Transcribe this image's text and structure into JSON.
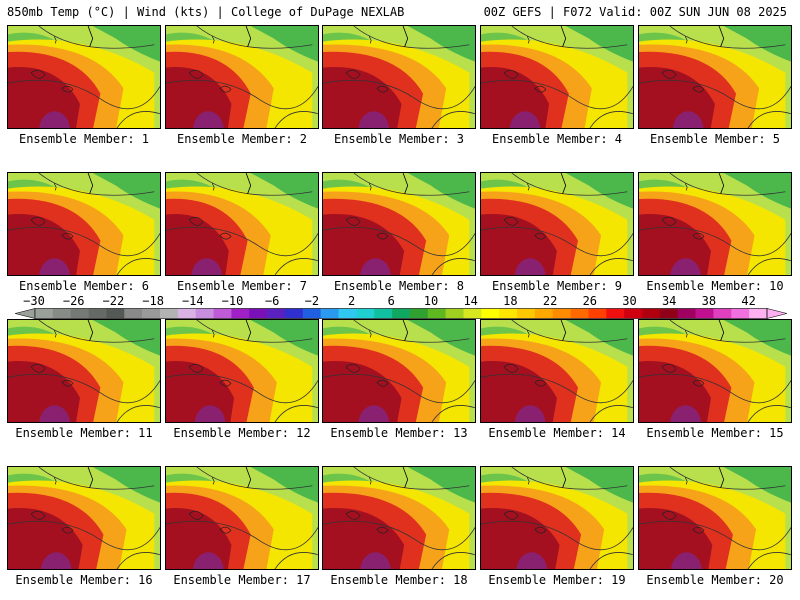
{
  "header": {
    "left": "850mb Temp (°C) | Wind (kts) | College of DuPage NEXLAB",
    "right": "00Z GEFS | F072 Valid: 00Z SUN JUN 08 2025"
  },
  "panels": [
    {
      "label": "Ensemble Member: 1"
    },
    {
      "label": "Ensemble Member: 2"
    },
    {
      "label": "Ensemble Member: 3"
    },
    {
      "label": "Ensemble Member: 4"
    },
    {
      "label": "Ensemble Member: 5"
    },
    {
      "label": "Ensemble Member: 6"
    },
    {
      "label": "Ensemble Member: 7"
    },
    {
      "label": "Ensemble Member: 8"
    },
    {
      "label": "Ensemble Member: 9"
    },
    {
      "label": "Ensemble Member: 10"
    },
    {
      "label": "Ensemble Member: 11"
    },
    {
      "label": "Ensemble Member: 12"
    },
    {
      "label": "Ensemble Member: 13"
    },
    {
      "label": "Ensemble Member: 14"
    },
    {
      "label": "Ensemble Member: 15"
    },
    {
      "label": "Ensemble Member: 16"
    },
    {
      "label": "Ensemble Member: 17"
    },
    {
      "label": "Ensemble Member: 18"
    },
    {
      "label": "Ensemble Member: 19"
    },
    {
      "label": "Ensemble Member: 20"
    }
  ],
  "colorbar": {
    "ticks": [
      "−30",
      "−26",
      "−22",
      "−18",
      "−14",
      "−10",
      "−6",
      "−2",
      "2",
      "6",
      "10",
      "14",
      "18",
      "22",
      "26",
      "30",
      "34",
      "38",
      "42"
    ],
    "colors": [
      "#9aa09a",
      "#878c87",
      "#767a76",
      "#666a66",
      "#555955",
      "#8a8a8a",
      "#9a9a9a",
      "#b3b3b3",
      "#d9b3e6",
      "#c98de0",
      "#c05bd8",
      "#a020c8",
      "#7a10b8",
      "#5a20c0",
      "#3030d0",
      "#2060e0",
      "#2a9af0",
      "#30c8f0",
      "#20d0d0",
      "#10c0a0",
      "#10a860",
      "#30a030",
      "#60b820",
      "#a0d020",
      "#d8e820",
      "#ffff00",
      "#ffe600",
      "#ffc800",
      "#ffa800",
      "#ff8c00",
      "#ff6a00",
      "#ff4000",
      "#f01010",
      "#d00010",
      "#b00010",
      "#900018",
      "#a00060",
      "#c01090",
      "#e040c0",
      "#f070e0",
      "#ffb0f0"
    ]
  },
  "palette": {
    "green": "#4cb84c",
    "yellowgreen": "#b8e04c",
    "yellow": "#f4e600",
    "orange": "#f7a31a",
    "red": "#e0301e",
    "darkred": "#a51020",
    "purple": "#8a2070"
  }
}
